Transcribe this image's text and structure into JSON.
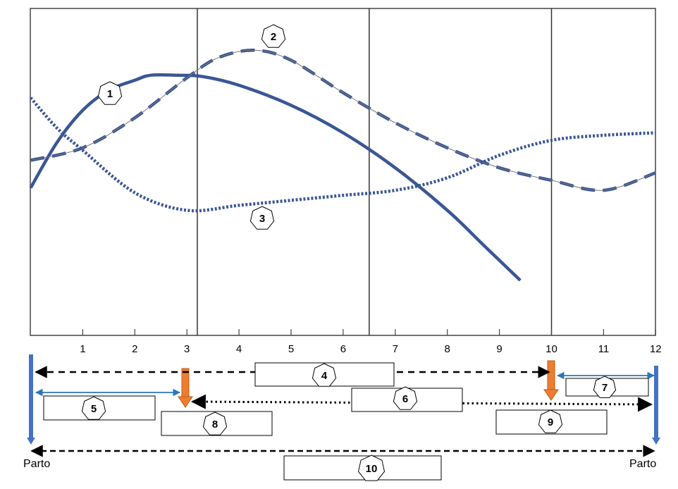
{
  "chart_data": {
    "type": "line",
    "title": "",
    "xlabel": "",
    "ylabel": "",
    "xlim": [
      0,
      12
    ],
    "x_ticks": [
      "1",
      "2",
      "3",
      "4",
      "5",
      "6",
      "7",
      "8",
      "9",
      "10",
      "11",
      "12"
    ],
    "period_dividers": [
      3.2,
      6.5,
      10
    ],
    "series": [
      {
        "label": "1",
        "line_style": "solid",
        "x": [
          0,
          0.5,
          1,
          1.5,
          2,
          2.3,
          2.8,
          3.3,
          4,
          5,
          6,
          7,
          8,
          8.7,
          9.4
        ],
        "y": [
          39,
          57,
          70,
          78,
          82,
          84,
          84,
          83.5,
          80,
          72,
          61,
          47,
          30,
          16,
          2
        ]
      },
      {
        "label": "2",
        "line_style": "dashed",
        "x": [
          0,
          1,
          2,
          3,
          3.6,
          4.3,
          5,
          6,
          7,
          8,
          9,
          10,
          11,
          12
        ],
        "y": [
          50,
          55,
          67,
          83,
          91,
          94,
          90,
          77,
          65,
          55,
          47,
          42,
          38,
          45
        ]
      },
      {
        "label": "3",
        "line_style": "dotted",
        "x": [
          0,
          0.5,
          1,
          2,
          3,
          4,
          5,
          6,
          7,
          8,
          9,
          10,
          11,
          12
        ],
        "y": [
          75,
          63,
          54,
          37,
          30,
          32,
          34,
          36,
          38,
          43,
          52,
          58,
          60,
          61
        ]
      }
    ],
    "annotations": [
      {
        "label": "4",
        "type": "dashed-double-arrow",
        "from": 0,
        "to": 10
      },
      {
        "label": "5",
        "type": "double-arrow",
        "from": 0,
        "to": 2.9
      },
      {
        "label": "6",
        "type": "dotted-double-arrow",
        "from": 3,
        "to": 12
      },
      {
        "label": "7",
        "type": "double-arrow",
        "from": 10.2,
        "to": 12
      },
      {
        "label": "8",
        "type": "event-marker",
        "at": 3
      },
      {
        "label": "9",
        "type": "event-marker",
        "at": 10
      },
      {
        "label": "10",
        "type": "dashed-double-arrow",
        "from": 0,
        "to": 12
      },
      {
        "label": "Parto",
        "type": "event-marker",
        "at": 0
      },
      {
        "label": "Parto",
        "type": "event-marker",
        "at": 12
      }
    ]
  },
  "colors": {
    "series": "#3a5695",
    "event_bar": "#4472c4",
    "arrow_orange": "#ed7d31",
    "arrow_blue": "#2e75b6",
    "axis": "#444444"
  }
}
